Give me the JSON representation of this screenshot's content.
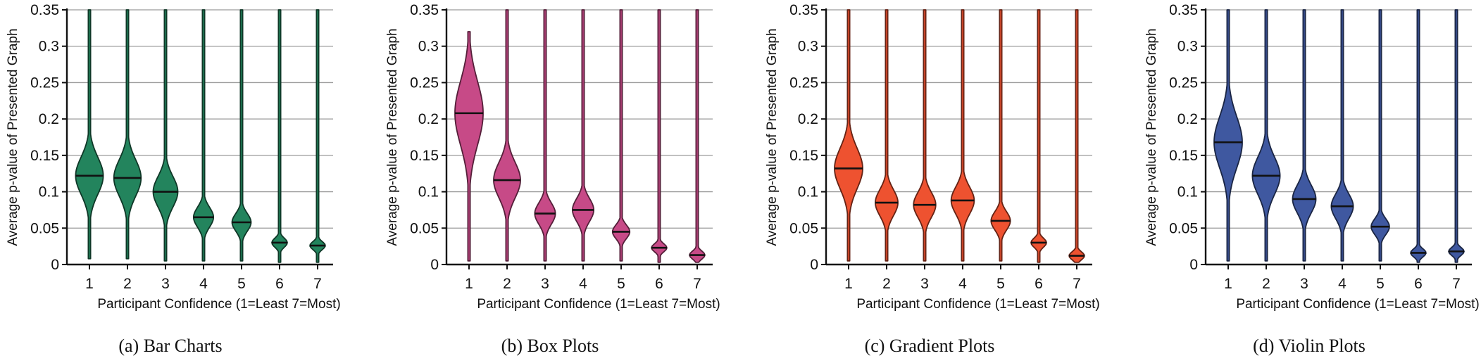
{
  "chart_data": [
    {
      "type": "violin",
      "caption": "(a) Bar Charts",
      "xlabel": "Participant Confidence (1=Least 7=Most)",
      "ylabel": "Average p-value of Presented Graph",
      "categories": [
        "1",
        "2",
        "3",
        "4",
        "5",
        "6",
        "7"
      ],
      "ylim": [
        0,
        0.35
      ],
      "yticks": [
        "0",
        "0.05",
        "0.1",
        "0.15",
        "0.2",
        "0.25",
        "0.3",
        "0.35"
      ],
      "grid": true,
      "color": "#23845d",
      "medians": [
        0.122,
        0.119,
        0.1,
        0.065,
        0.058,
        0.03,
        0.026
      ],
      "ranges": [
        [
          0.008,
          0.35
        ],
        [
          0.008,
          0.35
        ],
        [
          0.005,
          0.35
        ],
        [
          0.005,
          0.35
        ],
        [
          0.005,
          0.35
        ],
        [
          0.003,
          0.35
        ],
        [
          0.003,
          0.35
        ]
      ]
    },
    {
      "type": "violin",
      "caption": "(b) Box Plots",
      "xlabel": "Participant Confidence (1=Least 7=Most)",
      "ylabel": "Average p-value of Presented Graph",
      "categories": [
        "1",
        "2",
        "3",
        "4",
        "5",
        "6",
        "7"
      ],
      "ylim": [
        0,
        0.35
      ],
      "yticks": [
        "0",
        "0.05",
        "0.1",
        "0.15",
        "0.2",
        "0.25",
        "0.3",
        "0.35"
      ],
      "grid": true,
      "color": "#c74a87",
      "medians": [
        0.208,
        0.116,
        0.07,
        0.075,
        0.045,
        0.023,
        0.013
      ],
      "ranges": [
        [
          0.005,
          0.32
        ],
        [
          0.005,
          0.35
        ],
        [
          0.005,
          0.35
        ],
        [
          0.005,
          0.35
        ],
        [
          0.005,
          0.35
        ],
        [
          0.003,
          0.35
        ],
        [
          0.003,
          0.35
        ]
      ]
    },
    {
      "type": "violin",
      "caption": "(c) Gradient Plots",
      "xlabel": "Participant Confidence (1=Least 7=Most)",
      "ylabel": "Average p-value of Presented Graph",
      "categories": [
        "1",
        "2",
        "3",
        "4",
        "5",
        "6",
        "7"
      ],
      "ylim": [
        0,
        0.35
      ],
      "yticks": [
        "0",
        "0.05",
        "0.1",
        "0.15",
        "0.2",
        "0.25",
        "0.3",
        "0.35"
      ],
      "grid": true,
      "color": "#ee5230",
      "medians": [
        0.132,
        0.085,
        0.082,
        0.088,
        0.06,
        0.03,
        0.012
      ],
      "ranges": [
        [
          0.005,
          0.35
        ],
        [
          0.005,
          0.35
        ],
        [
          0.005,
          0.35
        ],
        [
          0.005,
          0.35
        ],
        [
          0.005,
          0.35
        ],
        [
          0.003,
          0.35
        ],
        [
          0.003,
          0.35
        ]
      ]
    },
    {
      "type": "violin",
      "caption": "(d) Violin Plots",
      "xlabel": "Participant Confidence (1=Least 7=Most)",
      "ylabel": "Average p-value of Presented Graph",
      "categories": [
        "1",
        "2",
        "3",
        "4",
        "5",
        "6",
        "7"
      ],
      "ylim": [
        0,
        0.35
      ],
      "yticks": [
        "0",
        "0.05",
        "0.1",
        "0.15",
        "0.2",
        "0.25",
        "0.3",
        "0.35"
      ],
      "grid": true,
      "color": "#3f58a0",
      "medians": [
        0.168,
        0.122,
        0.09,
        0.08,
        0.052,
        0.016,
        0.018
      ],
      "ranges": [
        [
          0.005,
          0.35
        ],
        [
          0.005,
          0.35
        ],
        [
          0.005,
          0.35
        ],
        [
          0.005,
          0.35
        ],
        [
          0.005,
          0.35
        ],
        [
          0.003,
          0.35
        ],
        [
          0.003,
          0.35
        ]
      ]
    }
  ]
}
